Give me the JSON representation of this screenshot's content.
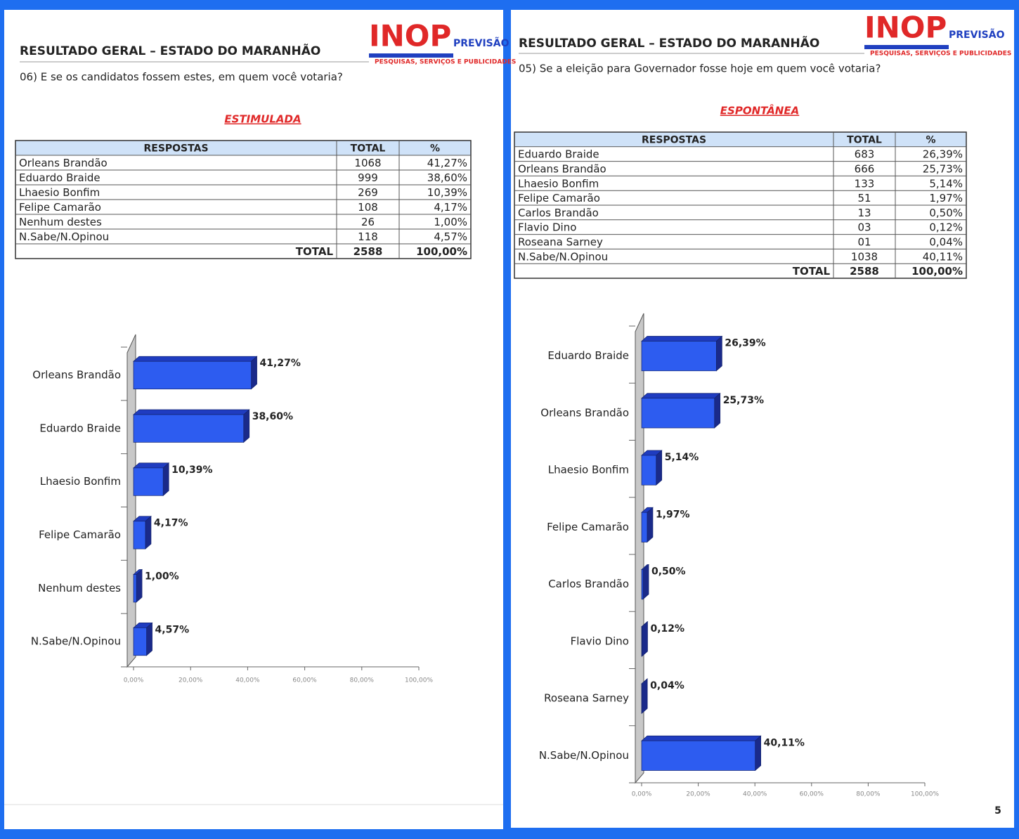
{
  "pages": [
    {
      "header": {
        "title": "RESULTADO GERAL – ESTADO DO MARANHÃO",
        "logo": {
          "brand": "INOP",
          "sub": "PREVISÃO",
          "tagline": "PESQUISAS, SERVIÇOS E PUBLICIDADES"
        }
      },
      "question": "06) E se os candidatos fossem estes, em quem você votaria?",
      "mode": "ESTIMULADA",
      "table": {
        "columns": [
          "RESPOSTAS",
          "TOTAL",
          "%"
        ],
        "rows": [
          [
            "Orleans Brandão",
            "1068",
            "41,27%"
          ],
          [
            "Eduardo Braide",
            "999",
            "38,60%"
          ],
          [
            "Lhaesio Bonfim",
            "269",
            "10,39%"
          ],
          [
            "Felipe Camarão",
            "108",
            "4,17%"
          ],
          [
            "Nenhum destes",
            "26",
            "1,00%"
          ],
          [
            "N.Sabe/N.Opinou",
            "118",
            "4,57%"
          ]
        ],
        "total": [
          "TOTAL",
          "2588",
          "100,00%"
        ]
      }
    },
    {
      "header": {
        "title": "RESULTADO GERAL – ESTADO DO MARANHÃO",
        "logo": {
          "brand": "INOP",
          "sub": "PREVISÃO",
          "tagline": "PESQUISAS, SERVIÇOS E PUBLICIDADES"
        }
      },
      "question": "05) Se a eleição para Governador fosse hoje em quem você votaria?",
      "mode": "ESPONTÂNEA",
      "table": {
        "columns": [
          "RESPOSTAS",
          "TOTAL",
          "%"
        ],
        "rows": [
          [
            "Eduardo Braide",
            "683",
            "26,39%"
          ],
          [
            "Orleans Brandão",
            "666",
            "25,73%"
          ],
          [
            "Lhaesio Bonfim",
            "133",
            "5,14%"
          ],
          [
            "Felipe Camarão",
            "51",
            "1,97%"
          ],
          [
            "Carlos Brandão",
            "13",
            "0,50%"
          ],
          [
            "Flavio Dino",
            "03",
            "0,12%"
          ],
          [
            "Roseana Sarney",
            "01",
            "0,04%"
          ],
          [
            "N.Sabe/N.Opinou",
            "1038",
            "40,11%"
          ]
        ],
        "total": [
          "TOTAL",
          "2588",
          "100,00%"
        ]
      },
      "page_number": "5"
    }
  ],
  "chart_data": [
    {
      "type": "bar",
      "orientation": "horizontal",
      "color": "#2d5cf0",
      "categories": [
        "Orleans Brandão",
        "Eduardo Braide",
        "Lhaesio Bonfim",
        "Felipe Camarão",
        "Nenhum destes",
        "N.Sabe/N.Opinou"
      ],
      "values": [
        41.27,
        38.6,
        10.39,
        4.17,
        1.0,
        4.57
      ],
      "value_labels": [
        "41,27%",
        "38,60%",
        "10,39%",
        "4,17%",
        "1,00%",
        "4,57%"
      ],
      "xlim": [
        0,
        100
      ],
      "xticks": [
        {
          "value": 0,
          "label": "0,00%"
        },
        {
          "value": 20,
          "label": "20,00%"
        },
        {
          "value": 40,
          "label": "40,00%"
        },
        {
          "value": 60,
          "label": "60,00%"
        },
        {
          "value": 80,
          "label": "80,00%"
        },
        {
          "value": 100,
          "label": "100,00%"
        }
      ]
    },
    {
      "type": "bar",
      "orientation": "horizontal",
      "color": "#2d5cf0",
      "categories": [
        "Eduardo Braide",
        "Orleans Brandão",
        "Lhaesio Bonfim",
        "Felipe Camarão",
        "Carlos Brandão",
        "Flavio Dino",
        "Roseana Sarney",
        "N.Sabe/N.Opinou"
      ],
      "values": [
        26.39,
        25.73,
        5.14,
        1.97,
        0.5,
        0.12,
        0.04,
        40.11
      ],
      "value_labels": [
        "26,39%",
        "25,73%",
        "5,14%",
        "1,97%",
        "0,50%",
        "0,12%",
        "0,04%",
        "40,11%"
      ],
      "xlim": [
        0,
        100
      ],
      "xticks": [
        {
          "value": 0,
          "label": "0,00%"
        },
        {
          "value": 20,
          "label": "20,00%"
        },
        {
          "value": 40,
          "label": "40,00%"
        },
        {
          "value": 60,
          "label": "60,00%"
        },
        {
          "value": 80,
          "label": "80,00%"
        },
        {
          "value": 100,
          "label": "100,00%"
        }
      ]
    }
  ]
}
